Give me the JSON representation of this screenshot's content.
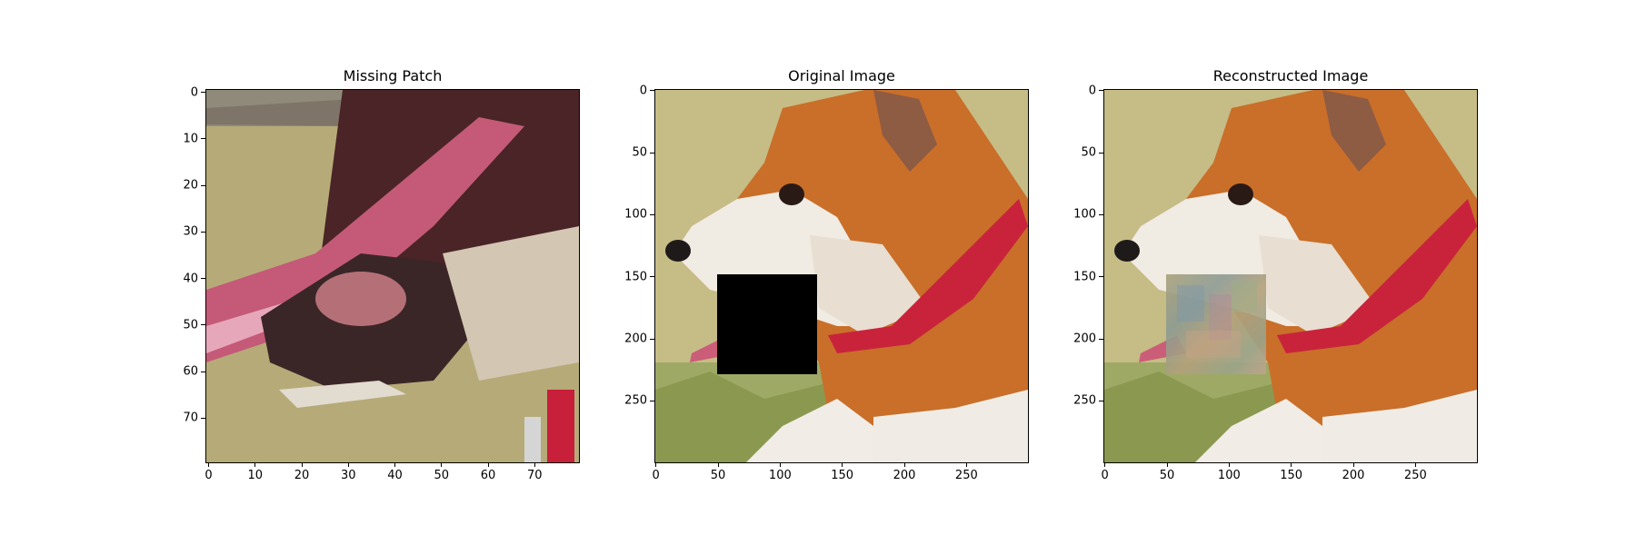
{
  "panels": [
    {
      "title": "Missing Patch",
      "x_ticks": [
        0,
        10,
        20,
        30,
        40,
        50,
        60,
        70
      ],
      "y_ticks": [
        0,
        10,
        20,
        30,
        40,
        50,
        60,
        70
      ],
      "extent": 80
    },
    {
      "title": "Original Image",
      "x_ticks": [
        0,
        50,
        100,
        150,
        200,
        250
      ],
      "y_ticks": [
        0,
        50,
        100,
        150,
        200,
        250
      ],
      "extent": 300
    },
    {
      "title": "Reconstructed Image",
      "x_ticks": [
        0,
        50,
        100,
        150,
        200,
        250
      ],
      "y_ticks": [
        0,
        50,
        100,
        150,
        200,
        250
      ],
      "extent": 300
    }
  ],
  "colors": {
    "grass": "#b9ae7a",
    "fur_orange": "#c96f2a",
    "fur_white": "#f1ece4",
    "collar": "#c71f3a",
    "tongue": "#cc5d78",
    "mask": "#000000"
  }
}
